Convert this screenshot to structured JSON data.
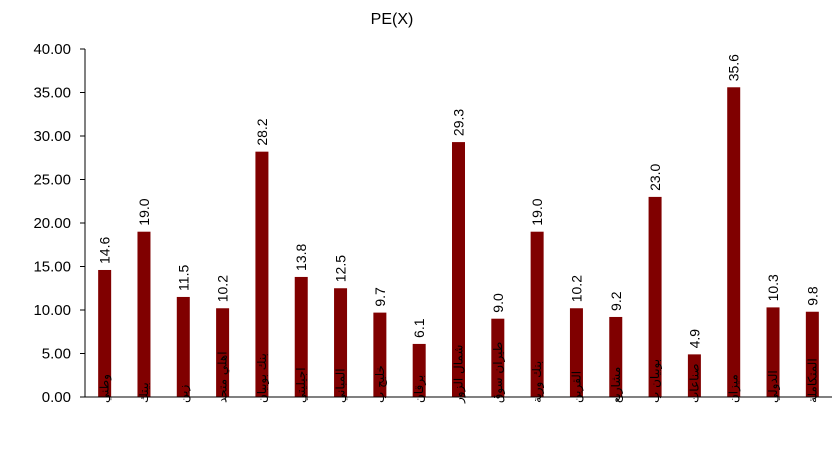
{
  "chart_data": {
    "type": "bar",
    "title": "PE(X)",
    "xlabel": "",
    "ylabel": "",
    "ylim": [
      0,
      40
    ],
    "yticks": [
      "0.00",
      "5.00",
      "10.00",
      "15.00",
      "20.00",
      "25.00",
      "30.00",
      "35.00",
      "40.00"
    ],
    "grid": false,
    "legend": "none",
    "bar_color": "#800000",
    "categories": [
      "وطني",
      "بيتك",
      "زين",
      "اهلي متحد",
      "بنك بوبيان",
      "اجيليتي",
      "المباني",
      "خليج ب",
      "برقان",
      "شمال الزور",
      "طيران سوق",
      "بنك ورية",
      "القرين",
      "مشاريع",
      "بوبيان ب",
      "صناعات",
      "ميزان",
      "الدولي",
      "المتكاملة"
    ],
    "values": [
      14.6,
      19.0,
      11.5,
      10.2,
      28.2,
      13.8,
      12.5,
      9.7,
      6.1,
      29.3,
      9.0,
      19.0,
      10.2,
      9.2,
      23.0,
      4.9,
      35.6,
      10.3,
      9.8
    ],
    "value_labels": [
      "14.6",
      "19.0",
      "11.5",
      "10.2",
      "28.2",
      "13.8",
      "12.5",
      "9.7",
      "6.1",
      "29.3",
      "9.0",
      "19.0",
      "10.2",
      "9.2",
      "23.0",
      "4.9",
      "35.6",
      "10.3",
      "9.8"
    ]
  }
}
